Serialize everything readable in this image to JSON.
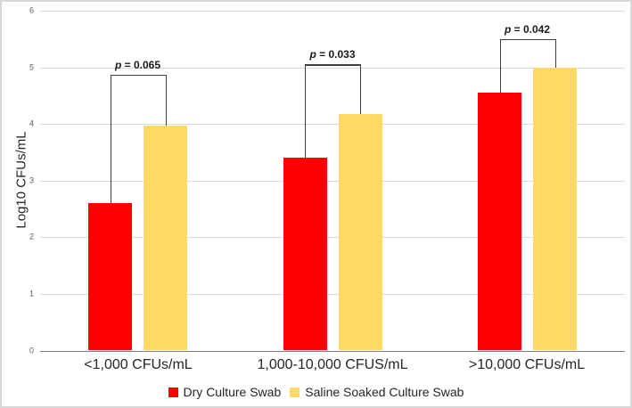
{
  "chart_data": {
    "type": "bar",
    "title": "",
    "xlabel": "",
    "ylabel": "Log10 CFUs/mL",
    "ylim": [
      0,
      6
    ],
    "yticks": [
      0,
      1,
      2,
      3,
      4,
      5,
      6
    ],
    "grid": true,
    "legend_position": "bottom",
    "categories": [
      "<1,000 CFUs/mL",
      "1,000-10,000 CFUS/mL",
      ">10,000 CFUs/mL"
    ],
    "series": [
      {
        "name": "Dry Culture Swab",
        "color": "#fe0000",
        "values": [
          2.6,
          3.4,
          4.55
        ]
      },
      {
        "name": "Saline Soaked Culture Swab",
        "color": "#ffd966",
        "values": [
          3.97,
          4.17,
          5.0
        ]
      }
    ],
    "significance_brackets": [
      {
        "label": "p = 0.065",
        "top_value": 4.87
      },
      {
        "label": "p = 0.033",
        "top_value": 5.05
      },
      {
        "label": "p = 0.042",
        "top_value": 5.5
      }
    ],
    "colors": {
      "gridline": "#d9d9d9",
      "axis_line": "#7f7f7f",
      "bracket": "#404040",
      "tick_label": "#595959",
      "text": "#262626"
    }
  }
}
